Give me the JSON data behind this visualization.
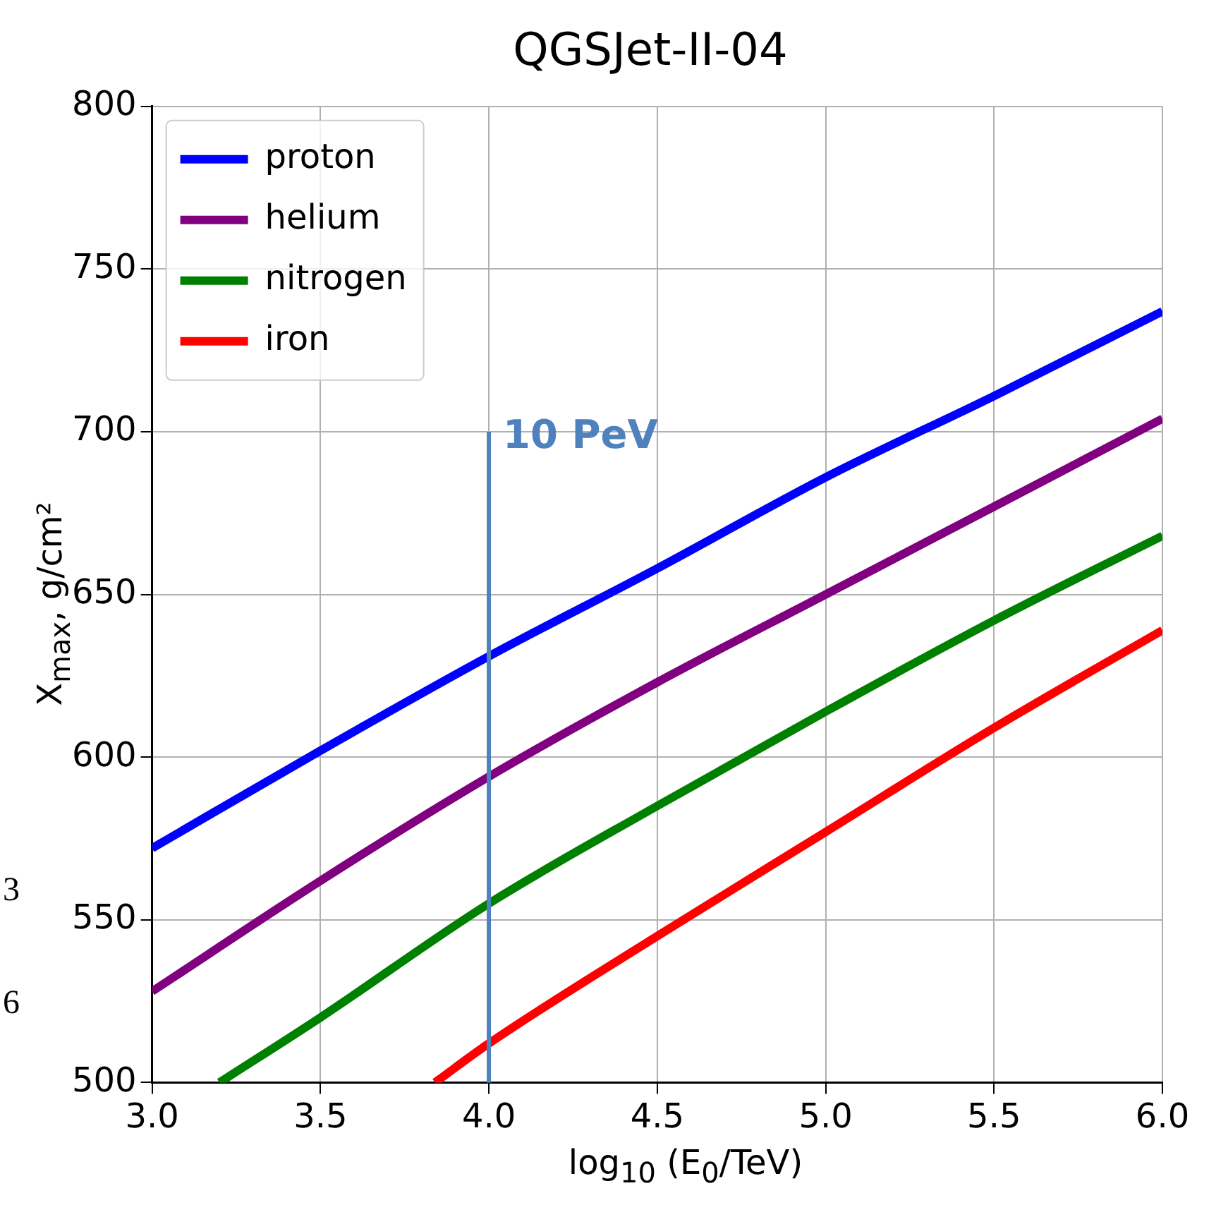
{
  "chart_data": {
    "type": "line",
    "title": "QGSJet-II-04",
    "xlabel": "log$_{10}$ (E$_{0}$/TeV)",
    "ylabel": "X$_{max}$, g/cm²",
    "xlim": [
      3.0,
      6.0
    ],
    "xticks": [
      {
        "value": 3,
        "label": "3.0"
      },
      {
        "value": 3.5,
        "label": "3.5"
      },
      {
        "value": 4,
        "label": "4.0"
      },
      {
        "value": 4.5,
        "label": "4.5"
      },
      {
        "value": 5,
        "label": "5.0"
      },
      {
        "value": 5.5,
        "label": "5.5"
      },
      {
        "value": 6,
        "label": "6.0"
      }
    ],
    "ylim": [
      500,
      800
    ],
    "yticks": [
      500,
      550,
      600,
      650,
      700,
      750,
      800
    ],
    "grid": true,
    "legend": "top left",
    "line_style": "solid",
    "marker": "none",
    "series": [
      {
        "name": "proton",
        "color": "#0000ff",
        "x": [
          3.0,
          3.5,
          4.0,
          4.5,
          5.0,
          5.5,
          6.0
        ],
        "values": [
          572,
          602,
          631,
          658,
          686,
          711,
          737
        ]
      },
      {
        "name": "helium",
        "color": "#800080",
        "x": [
          3.0,
          3.5,
          4.0,
          4.5,
          5.0,
          5.5,
          6.0
        ],
        "values": [
          528,
          562,
          594,
          623,
          650,
          677,
          704
        ]
      },
      {
        "name": "nitrogen",
        "color": "#008000",
        "x": [
          3.2,
          3.5,
          4.0,
          4.5,
          5.0,
          5.5,
          6.0
        ],
        "values": [
          500,
          520,
          555,
          585,
          614,
          642,
          668
        ]
      },
      {
        "name": "iron",
        "color": "#ff0000",
        "x": [
          3.84,
          4.0,
          4.5,
          5.0,
          5.5,
          6.0
        ],
        "values": [
          500,
          512,
          545,
          577,
          609,
          639
        ]
      }
    ],
    "ref_lines": [
      {
        "axis": "x",
        "value": 4.0,
        "label": "10 PeV",
        "color": "#4f81bd"
      }
    ],
    "annotations": [
      "3",
      "6"
    ]
  }
}
